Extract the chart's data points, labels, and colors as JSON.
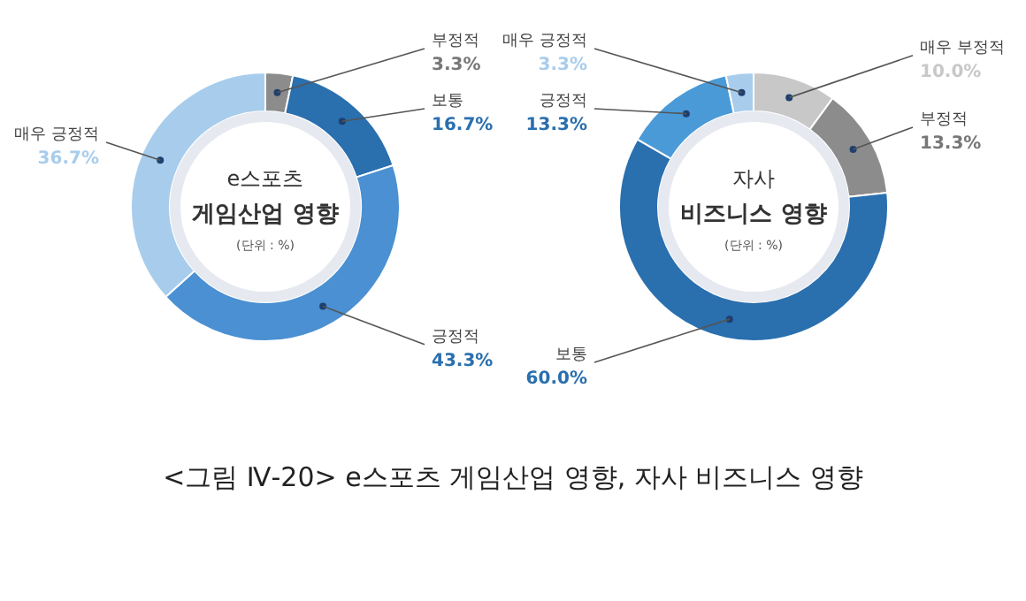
{
  "chart_data": [
    {
      "type": "donut",
      "title": "e스포츠 게임산업 영향",
      "subtitle": "(단위 : %)",
      "categories": [
        "부정적",
        "보통",
        "긍정적",
        "매우 긍정적"
      ],
      "values": [
        3.3,
        16.7,
        43.3,
        36.7
      ],
      "value_labels": [
        "3.3%",
        "16.7%",
        "43.3%",
        "36.7%"
      ],
      "colors": [
        "#8c8c8c",
        "#2a6fae",
        "#4a90d2",
        "#a8cdec"
      ],
      "annotations": [
        "<그림 Ⅳ-20> e스포츠 게임산업 영향, 자사 비즈니스 영향"
      ]
    },
    {
      "type": "donut",
      "title": "자사 비즈니스 영향",
      "subtitle": "(단위 : %)",
      "categories": [
        "매우 부정적",
        "부정적",
        "보통",
        "긍정적",
        "매우 긍정적"
      ],
      "values": [
        10.0,
        13.3,
        60.0,
        13.3,
        3.3
      ],
      "value_labels": [
        "10.0%",
        "13.3%",
        "60.0%",
        "13.3%",
        "3.3%"
      ],
      "colors": [
        "#c8c8c8",
        "#8c8c8c",
        "#2a6fae",
        "#4a9ad8",
        "#a8cdec"
      ]
    }
  ]
}
